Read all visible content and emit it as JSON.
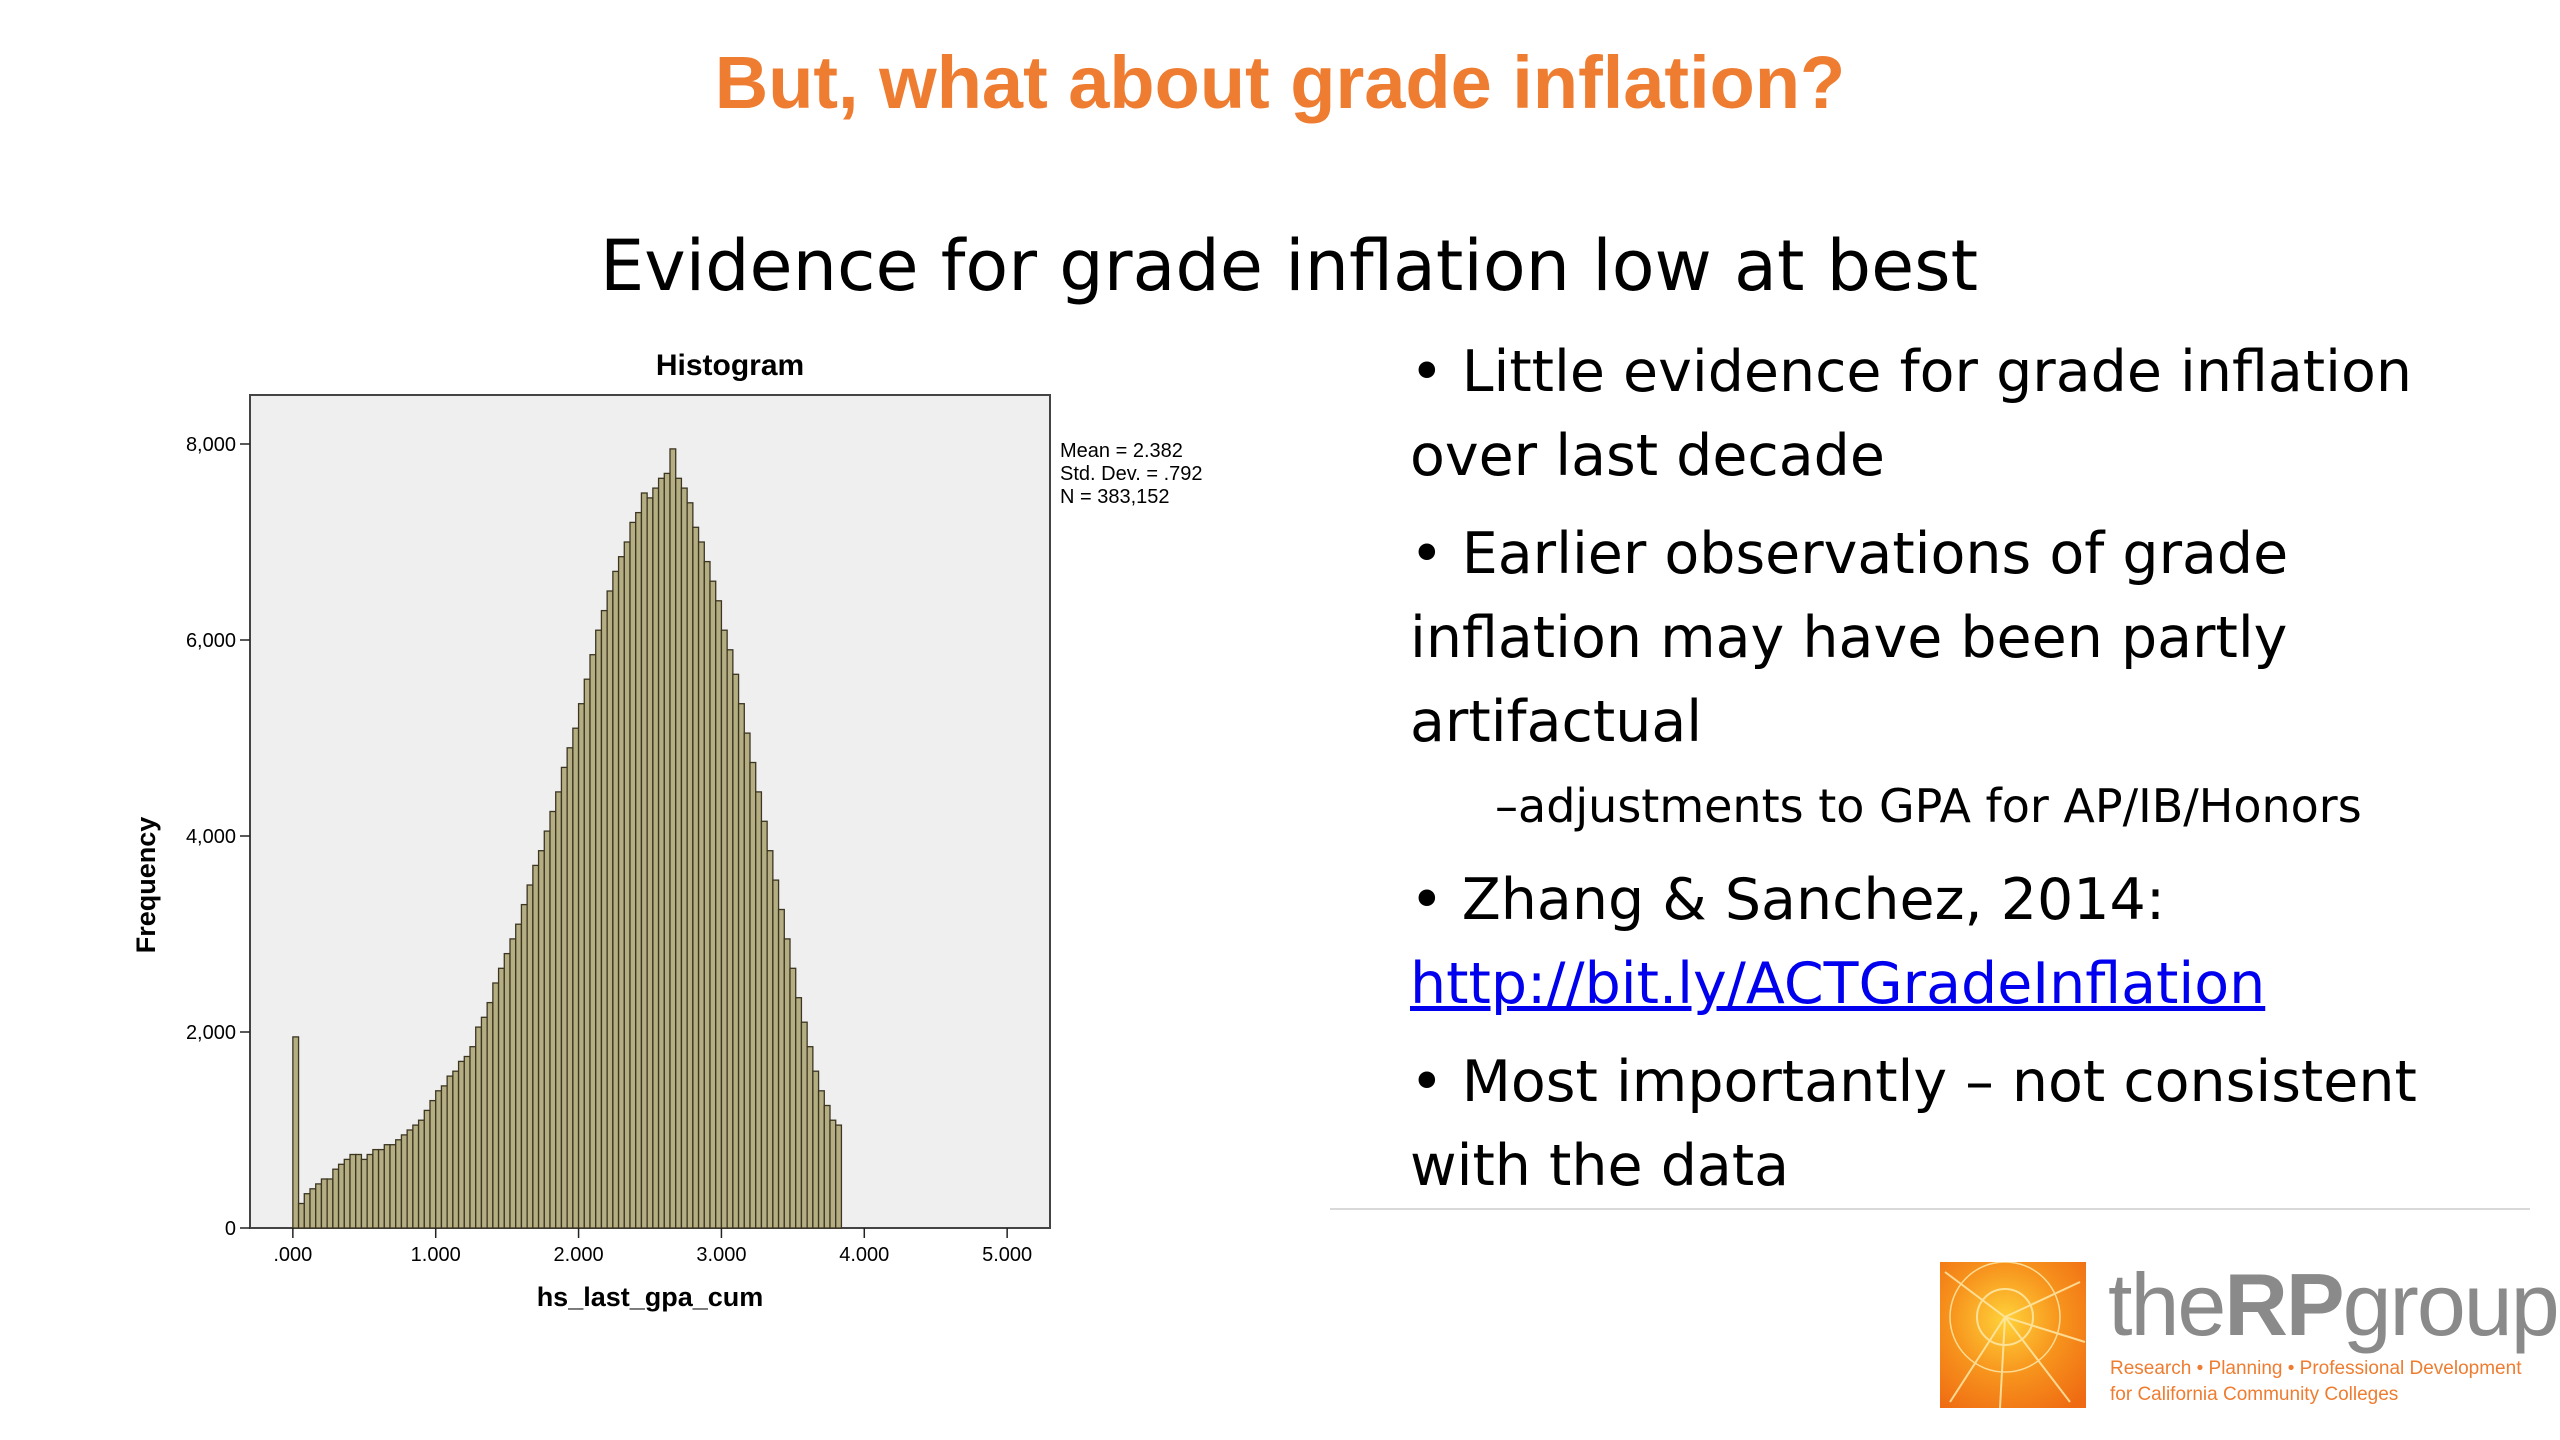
{
  "slide": {
    "title": "But, what about grade inflation?",
    "subtitle": "Evidence for grade inflation low at best"
  },
  "bullets": [
    {
      "text": "• Little evidence for grade inflation over last decade"
    },
    {
      "text": "• Earlier observations of grade inflation may have been partly artifactual"
    },
    {
      "sub": "–adjustments to GPA for AP/IB/Honors"
    },
    {
      "text": "• Zhang & Sanchez, 2014: ",
      "link": "http://bit.ly/ACTGradeInflation"
    },
    {
      "text": "• Most importantly – not consistent with the data"
    }
  ],
  "logo": {
    "name_prefix": "the",
    "name_bold": "RP",
    "name_suffix": "group",
    "tagline1": "Research • Planning • Professional Development",
    "tagline2": "for California Community Colleges"
  },
  "colors": {
    "title": "#ee7d31",
    "bar_fill": "#b5ae82",
    "bar_stroke": "#3b3522",
    "plot_bg": "#efefef",
    "logo_orange": "#f58220"
  },
  "chart_data": {
    "type": "bar",
    "title": "Histogram",
    "xlabel": "hs_last_gpa_cum",
    "ylabel": "Frequency",
    "xlim": [
      -0.3,
      5.3
    ],
    "ylim": [
      0,
      8500
    ],
    "xticks": [
      0,
      1,
      2,
      3,
      4,
      5
    ],
    "xtick_labels": [
      ".000",
      "1.000",
      "2.000",
      "3.000",
      "4.000",
      "5.000"
    ],
    "yticks": [
      0,
      2000,
      4000,
      6000,
      8000
    ],
    "ytick_labels": [
      "0",
      "2,000",
      "4,000",
      "6,000",
      "8,000"
    ],
    "bin_width": 0.04,
    "bin_start": 0,
    "stats": [
      "Mean = 2.382",
      "Std. Dev. = .792",
      "N = 383,152"
    ],
    "values": [
      1950,
      250,
      350,
      400,
      450,
      500,
      500,
      600,
      650,
      700,
      750,
      750,
      700,
      750,
      800,
      800,
      850,
      850,
      900,
      950,
      1000,
      1050,
      1100,
      1200,
      1300,
      1400,
      1450,
      1550,
      1600,
      1700,
      1750,
      1850,
      2050,
      2150,
      2300,
      2500,
      2650,
      2800,
      2950,
      3100,
      3300,
      3500,
      3700,
      3850,
      4050,
      4250,
      4450,
      4700,
      4900,
      5100,
      5350,
      5600,
      5850,
      6100,
      6300,
      6500,
      6700,
      6850,
      7000,
      7200,
      7300,
      7500,
      7450,
      7550,
      7650,
      7700,
      7950,
      7650,
      7550,
      7400,
      7150,
      7000,
      6800,
      6600,
      6400,
      6100,
      5900,
      5650,
      5350,
      5050,
      4750,
      4450,
      4150,
      3850,
      3550,
      3250,
      2950,
      2650,
      2350,
      2100,
      1850,
      1600,
      1400,
      1250,
      1100,
      1050
    ]
  }
}
